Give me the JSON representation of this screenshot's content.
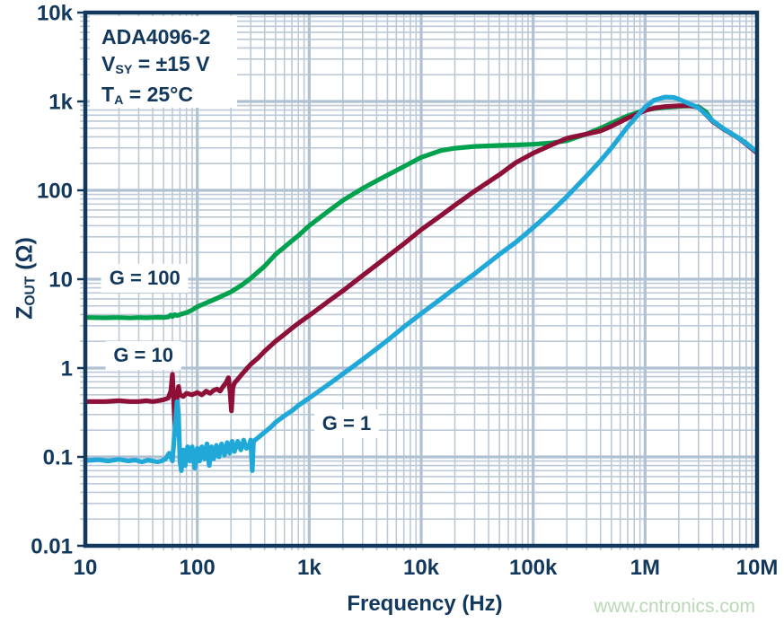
{
  "chart_data": {
    "type": "line",
    "scale": {
      "x": "log",
      "y": "log"
    },
    "xlabel": "Frequency (Hz)",
    "ylabel_segments": [
      {
        "t": "Z"
      },
      {
        "t": "OUT",
        "sub": true
      },
      {
        "t": " (Ω)"
      }
    ],
    "xlim": [
      10,
      10000000
    ],
    "ylim": [
      0.01,
      10000
    ],
    "grid": true,
    "x_ticks": {
      "values": [
        10,
        100,
        1000,
        10000,
        100000,
        1000000,
        10000000
      ],
      "labels": [
        "10",
        "100",
        "1k",
        "10k",
        "100k",
        "1M",
        "10M"
      ]
    },
    "y_ticks": {
      "values": [
        10000,
        1000,
        100,
        10,
        1,
        0.1,
        0.01
      ],
      "labels": [
        "10k",
        "1k",
        "100",
        "10",
        "1",
        "0.1",
        "0.01"
      ]
    },
    "annotation_lines": [
      [
        {
          "t": "ADA4096-2"
        }
      ],
      [
        {
          "t": "V"
        },
        {
          "t": "SY",
          "sub": true
        },
        {
          "t": " = ±15 V"
        }
      ],
      [
        {
          "t": "T"
        },
        {
          "t": "A",
          "sub": true
        },
        {
          "t": " = 25°C"
        }
      ]
    ],
    "watermark": "www.cntronics.com",
    "colors": {
      "axis": "#12385e",
      "grid_minor": "#bcc9d6",
      "grid_major": "#b0c2d2",
      "watermark": "#b8d9b4"
    },
    "series": [
      {
        "name": "G = 100",
        "label": "G = 100",
        "label_pos": [
          34,
          10.2
        ],
        "color": "#00a24e",
        "points": [
          [
            10,
            3.7
          ],
          [
            15,
            3.68
          ],
          [
            20,
            3.7
          ],
          [
            25,
            3.66
          ],
          [
            30,
            3.7
          ],
          [
            35,
            3.68
          ],
          [
            40,
            3.7
          ],
          [
            45,
            3.72
          ],
          [
            50,
            3.7
          ],
          [
            55,
            3.75
          ],
          [
            58,
            3.95
          ],
          [
            60,
            3.8
          ],
          [
            63,
            4.0
          ],
          [
            66,
            3.9
          ],
          [
            70,
            4.0
          ],
          [
            80,
            4.2
          ],
          [
            90,
            4.5
          ],
          [
            100,
            4.9
          ],
          [
            120,
            5.4
          ],
          [
            150,
            6.1
          ],
          [
            200,
            7.2
          ],
          [
            250,
            8.6
          ],
          [
            300,
            10.2
          ],
          [
            400,
            14
          ],
          [
            500,
            19
          ],
          [
            600,
            23
          ],
          [
            700,
            27
          ],
          [
            800,
            31
          ],
          [
            1000,
            40
          ],
          [
            1500,
            59
          ],
          [
            2000,
            77
          ],
          [
            3000,
            105
          ],
          [
            4000,
            128
          ],
          [
            5000,
            148
          ],
          [
            7000,
            185
          ],
          [
            10000,
            235
          ],
          [
            15000,
            280
          ],
          [
            20000,
            298
          ],
          [
            30000,
            312
          ],
          [
            50000,
            320
          ],
          [
            70000,
            324
          ],
          [
            100000,
            330
          ],
          [
            150000,
            342
          ],
          [
            200000,
            362
          ],
          [
            300000,
            430
          ],
          [
            400000,
            500
          ],
          [
            500000,
            570
          ],
          [
            700000,
            690
          ],
          [
            1000000,
            800
          ],
          [
            1200000,
            830
          ],
          [
            1500000,
            855
          ],
          [
            2000000,
            880
          ],
          [
            2500000,
            890
          ],
          [
            3000000,
            870
          ],
          [
            3500000,
            760
          ],
          [
            4000000,
            600
          ],
          [
            5000000,
            490
          ],
          [
            6000000,
            430
          ],
          [
            7000000,
            380
          ],
          [
            8000000,
            340
          ],
          [
            10000000,
            265
          ]
        ]
      },
      {
        "name": "G = 10",
        "label": "G = 10",
        "label_pos": [
          33,
          1.38
        ],
        "color": "#8e1038",
        "points": [
          [
            10,
            0.42
          ],
          [
            15,
            0.42
          ],
          [
            20,
            0.43
          ],
          [
            25,
            0.42
          ],
          [
            30,
            0.42
          ],
          [
            35,
            0.43
          ],
          [
            40,
            0.42
          ],
          [
            45,
            0.43
          ],
          [
            50,
            0.44
          ],
          [
            55,
            0.46
          ],
          [
            58,
            0.55
          ],
          [
            60,
            0.85
          ],
          [
            62,
            0.35
          ],
          [
            64,
            0.18
          ],
          [
            66,
            0.5
          ],
          [
            68,
            0.62
          ],
          [
            70,
            0.5
          ],
          [
            75,
            0.48
          ],
          [
            80,
            0.52
          ],
          [
            90,
            0.5
          ],
          [
            100,
            0.53
          ],
          [
            110,
            0.5
          ],
          [
            120,
            0.55
          ],
          [
            130,
            0.52
          ],
          [
            140,
            0.56
          ],
          [
            150,
            0.58
          ],
          [
            160,
            0.55
          ],
          [
            170,
            0.62
          ],
          [
            180,
            0.68
          ],
          [
            190,
            0.78
          ],
          [
            196,
            0.55
          ],
          [
            202,
            0.33
          ],
          [
            208,
            0.6
          ],
          [
            215,
            0.68
          ],
          [
            230,
            0.75
          ],
          [
            250,
            0.85
          ],
          [
            280,
            1.0
          ],
          [
            300,
            1.1
          ],
          [
            350,
            1.3
          ],
          [
            400,
            1.55
          ],
          [
            500,
            2.0
          ],
          [
            600,
            2.4
          ],
          [
            700,
            2.8
          ],
          [
            800,
            3.2
          ],
          [
            1000,
            3.9
          ],
          [
            1500,
            5.7
          ],
          [
            2000,
            7.4
          ],
          [
            3000,
            11
          ],
          [
            4000,
            14.5
          ],
          [
            5000,
            18
          ],
          [
            7000,
            25
          ],
          [
            10000,
            36
          ],
          [
            15000,
            52
          ],
          [
            20000,
            68
          ],
          [
            30000,
            98
          ],
          [
            50000,
            150
          ],
          [
            70000,
            205
          ],
          [
            100000,
            262
          ],
          [
            150000,
            330
          ],
          [
            200000,
            385
          ],
          [
            300000,
            430
          ],
          [
            400000,
            465
          ],
          [
            500000,
            525
          ],
          [
            700000,
            650
          ],
          [
            1000000,
            790
          ],
          [
            1200000,
            840
          ],
          [
            1500000,
            875
          ],
          [
            2000000,
            893
          ],
          [
            2500000,
            897
          ],
          [
            3000000,
            860
          ],
          [
            4000000,
            600
          ],
          [
            5000000,
            490
          ],
          [
            7000000,
            378
          ],
          [
            10000000,
            263
          ]
        ]
      },
      {
        "name": "G = 1",
        "label": "G = 1",
        "label_pos": [
          2160,
          0.237
        ],
        "color": "#1fa8d8",
        "points": [
          [
            10,
            0.091
          ],
          [
            13,
            0.093
          ],
          [
            16,
            0.09
          ],
          [
            20,
            0.094
          ],
          [
            24,
            0.09
          ],
          [
            28,
            0.092
          ],
          [
            32,
            0.088
          ],
          [
            36,
            0.092
          ],
          [
            40,
            0.09
          ],
          [
            44,
            0.088
          ],
          [
            48,
            0.09
          ],
          [
            52,
            0.095
          ],
          [
            56,
            0.11
          ],
          [
            60,
            0.09
          ],
          [
            63,
            0.2
          ],
          [
            66,
            0.42
          ],
          [
            68,
            0.3
          ],
          [
            70,
            0.09
          ],
          [
            72,
            0.07
          ],
          [
            75,
            0.12
          ],
          [
            78,
            0.08
          ],
          [
            82,
            0.13
          ],
          [
            86,
            0.09
          ],
          [
            90,
            0.13
          ],
          [
            95,
            0.075
          ],
          [
            100,
            0.125
          ],
          [
            105,
            0.09
          ],
          [
            110,
            0.13
          ],
          [
            116,
            0.095
          ],
          [
            122,
            0.14
          ],
          [
            128,
            0.08
          ],
          [
            134,
            0.13
          ],
          [
            140,
            0.095
          ],
          [
            148,
            0.135
          ],
          [
            156,
            0.1
          ],
          [
            165,
            0.14
          ],
          [
            175,
            0.105
          ],
          [
            185,
            0.145
          ],
          [
            195,
            0.11
          ],
          [
            205,
            0.15
          ],
          [
            215,
            0.115
          ],
          [
            230,
            0.15
          ],
          [
            245,
            0.12
          ],
          [
            260,
            0.155
          ],
          [
            275,
            0.125
          ],
          [
            290,
            0.13
          ],
          [
            300,
            0.155
          ],
          [
            310,
            0.07
          ],
          [
            318,
            0.15
          ],
          [
            350,
            0.165
          ],
          [
            380,
            0.18
          ],
          [
            420,
            0.2
          ],
          [
            460,
            0.22
          ],
          [
            500,
            0.245
          ],
          [
            600,
            0.29
          ],
          [
            700,
            0.33
          ],
          [
            800,
            0.38
          ],
          [
            1000,
            0.46
          ],
          [
            1500,
            0.66
          ],
          [
            2000,
            0.86
          ],
          [
            3000,
            1.25
          ],
          [
            4000,
            1.65
          ],
          [
            5000,
            2.05
          ],
          [
            7000,
            2.9
          ],
          [
            10000,
            4.1
          ],
          [
            15000,
            6.0
          ],
          [
            20000,
            7.9
          ],
          [
            30000,
            11.5
          ],
          [
            50000,
            19
          ],
          [
            70000,
            26
          ],
          [
            100000,
            38
          ],
          [
            150000,
            60
          ],
          [
            200000,
            85
          ],
          [
            300000,
            145
          ],
          [
            400000,
            215
          ],
          [
            500000,
            300
          ],
          [
            700000,
            520
          ],
          [
            900000,
            750
          ],
          [
            1000000,
            860
          ],
          [
            1200000,
            1030
          ],
          [
            1500000,
            1120
          ],
          [
            1800000,
            1110
          ],
          [
            2000000,
            1060
          ],
          [
            2500000,
            940
          ],
          [
            3000000,
            850
          ],
          [
            4000000,
            610
          ],
          [
            5000000,
            495
          ],
          [
            7000000,
            380
          ],
          [
            10000000,
            272
          ]
        ]
      }
    ]
  }
}
